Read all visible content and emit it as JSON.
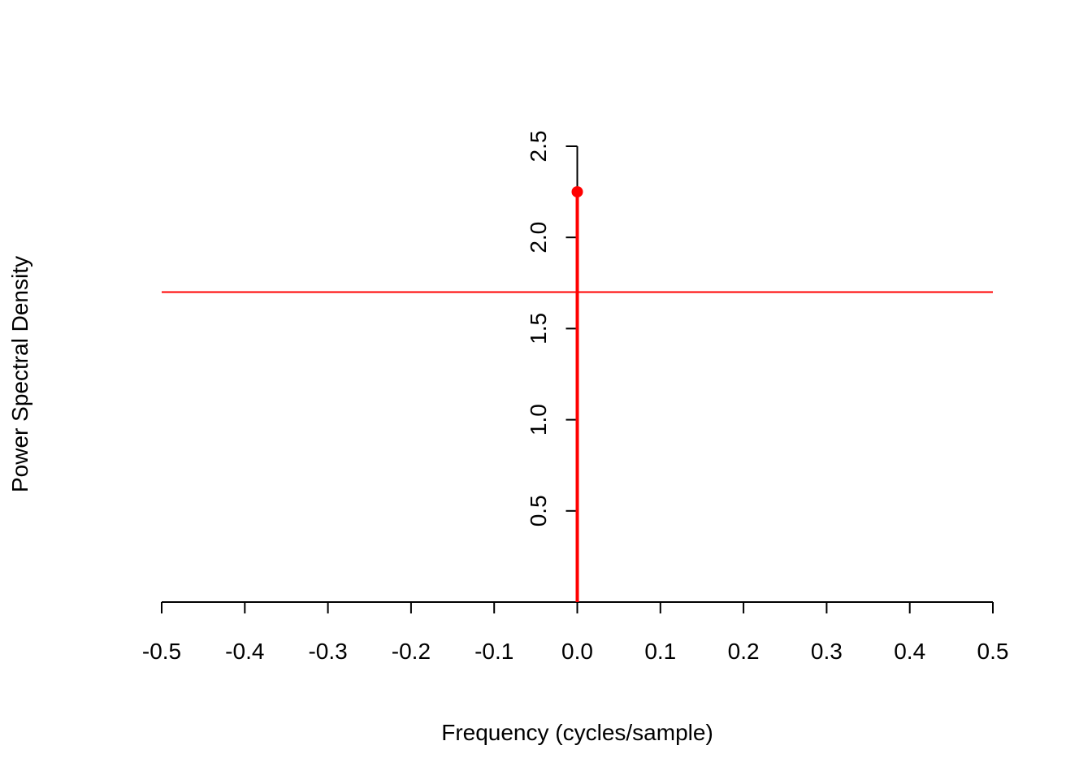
{
  "chart_data": {
    "type": "line",
    "title": "",
    "xlabel": "Frequency (cycles/sample)",
    "ylabel": "Power Spectral Density",
    "xlim": [
      -0.5,
      0.5
    ],
    "ylim": [
      0,
      2.5
    ],
    "x_ticks": [
      "-0.5",
      "-0.4",
      "-0.3",
      "-0.2",
      "-0.1",
      "0.0",
      "0.1",
      "0.2",
      "0.3",
      "0.4",
      "0.5"
    ],
    "y_ticks": [
      "0.5",
      "1.0",
      "1.5",
      "2.0",
      "2.5"
    ],
    "axes_cross_at_x": 0.0,
    "grid": false,
    "spike": {
      "x": 0.0,
      "y": 2.25,
      "color": "#ff0000",
      "marker": "filled-circle"
    },
    "reference_line": {
      "y": 1.7,
      "color": "#ff0000"
    }
  }
}
